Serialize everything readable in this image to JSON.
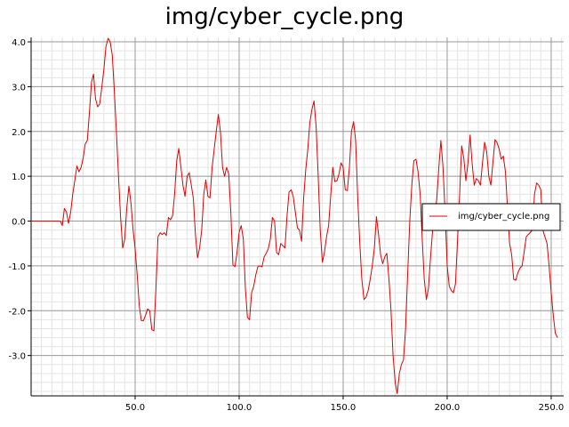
{
  "chart_data": {
    "type": "line",
    "title": "img/cyber_cycle.png",
    "xlabel": "",
    "ylabel": "",
    "xlim": [
      0,
      256
    ],
    "ylim": [
      -3.9,
      4.1
    ],
    "x_ticks": [
      50,
      100,
      150,
      200,
      250
    ],
    "x_tick_labels": [
      "50.0",
      "100.0",
      "150.0",
      "200.0",
      "250.0"
    ],
    "y_ticks": [
      -3,
      -2,
      -1,
      0,
      1,
      2,
      3,
      4
    ],
    "y_tick_labels": [
      "-3.0",
      "-2.0",
      "-1.0",
      "0.0",
      "1.0",
      "2.0",
      "3.0",
      "4.0"
    ],
    "grid": true,
    "legend_position": "right",
    "series": [
      {
        "name": "img/cyber_cycle.png",
        "color": "#e00000",
        "points": [
          [
            0,
            0
          ],
          [
            14,
            0
          ],
          [
            15,
            -0.1
          ],
          [
            16,
            0.28
          ],
          [
            17,
            0.2
          ],
          [
            18,
            -0.05
          ],
          [
            19,
            0.2
          ],
          [
            20,
            0.6
          ],
          [
            21,
            0.9
          ],
          [
            22,
            1.23
          ],
          [
            23,
            1.1
          ],
          [
            24,
            1.2
          ],
          [
            25,
            1.4
          ],
          [
            26,
            1.72
          ],
          [
            27,
            1.8
          ],
          [
            28,
            2.4
          ],
          [
            29,
            3.1
          ],
          [
            30,
            3.28
          ],
          [
            31,
            2.72
          ],
          [
            32,
            2.55
          ],
          [
            33,
            2.62
          ],
          [
            34,
            3.0
          ],
          [
            35,
            3.4
          ],
          [
            36,
            3.9
          ],
          [
            37,
            4.08
          ],
          [
            38,
            4.0
          ],
          [
            39,
            3.7
          ],
          [
            40,
            2.9
          ],
          [
            41,
            2.0
          ],
          [
            42,
            1.0
          ],
          [
            43,
            0.1
          ],
          [
            44,
            -0.6
          ],
          [
            45,
            -0.4
          ],
          [
            46,
            0.3
          ],
          [
            47,
            0.78
          ],
          [
            48,
            0.4
          ],
          [
            49,
            -0.2
          ],
          [
            50,
            -0.62
          ],
          [
            51,
            -1.2
          ],
          [
            52,
            -1.9
          ],
          [
            53,
            -2.22
          ],
          [
            54,
            -2.22
          ],
          [
            55,
            -2.1
          ],
          [
            56,
            -1.96
          ],
          [
            57,
            -2.0
          ],
          [
            58,
            -2.42
          ],
          [
            59,
            -2.45
          ],
          [
            60,
            -1.5
          ],
          [
            61,
            -0.35
          ],
          [
            62,
            -0.26
          ],
          [
            63,
            -0.3
          ],
          [
            64,
            -0.26
          ],
          [
            65,
            -0.32
          ],
          [
            66,
            0.08
          ],
          [
            67,
            0.03
          ],
          [
            68,
            0.12
          ],
          [
            69,
            0.6
          ],
          [
            70,
            1.35
          ],
          [
            71,
            1.62
          ],
          [
            72,
            1.2
          ],
          [
            73,
            0.8
          ],
          [
            74,
            0.55
          ],
          [
            75,
            1.0
          ],
          [
            76,
            1.08
          ],
          [
            77,
            0.8
          ],
          [
            78,
            0.5
          ],
          [
            79,
            -0.3
          ],
          [
            80,
            -0.82
          ],
          [
            81,
            -0.6
          ],
          [
            82,
            -0.2
          ],
          [
            83,
            0.6
          ],
          [
            84,
            0.92
          ],
          [
            85,
            0.55
          ],
          [
            86,
            0.52
          ],
          [
            87,
            1.2
          ],
          [
            88,
            1.6
          ],
          [
            89,
            2.0
          ],
          [
            90,
            2.38
          ],
          [
            91,
            2.0
          ],
          [
            92,
            1.2
          ],
          [
            93,
            1.0
          ],
          [
            94,
            1.2
          ],
          [
            95,
            1.05
          ],
          [
            96,
            0.2
          ],
          [
            97,
            -0.98
          ],
          [
            98,
            -1.02
          ],
          [
            99,
            -0.7
          ],
          [
            100,
            -0.25
          ],
          [
            101,
            -0.1
          ],
          [
            102,
            -0.4
          ],
          [
            103,
            -1.5
          ],
          [
            104,
            -2.15
          ],
          [
            105,
            -2.2
          ],
          [
            106,
            -1.6
          ],
          [
            107,
            -1.45
          ],
          [
            108,
            -1.2
          ],
          [
            109,
            -1.02
          ],
          [
            110,
            -1.0
          ],
          [
            111,
            -1.02
          ],
          [
            112,
            -0.8
          ],
          [
            113,
            -0.72
          ],
          [
            114,
            -0.62
          ],
          [
            115,
            -0.4
          ],
          [
            116,
            0.08
          ],
          [
            117,
            0.0
          ],
          [
            118,
            -0.7
          ],
          [
            119,
            -0.75
          ],
          [
            120,
            -0.5
          ],
          [
            121,
            -0.55
          ],
          [
            122,
            -0.6
          ],
          [
            123,
            0.1
          ],
          [
            124,
            0.65
          ],
          [
            125,
            0.7
          ],
          [
            126,
            0.55
          ],
          [
            127,
            0.2
          ],
          [
            128,
            -0.15
          ],
          [
            129,
            -0.2
          ],
          [
            130,
            -0.45
          ],
          [
            131,
            0.5
          ],
          [
            132,
            1.15
          ],
          [
            133,
            1.6
          ],
          [
            134,
            2.2
          ],
          [
            135,
            2.5
          ],
          [
            136,
            2.68
          ],
          [
            137,
            2.1
          ],
          [
            138,
            1.0
          ],
          [
            139,
            -0.2
          ],
          [
            140,
            -0.92
          ],
          [
            141,
            -0.7
          ],
          [
            142,
            -0.35
          ],
          [
            143,
            -0.1
          ],
          [
            144,
            0.55
          ],
          [
            145,
            1.2
          ],
          [
            146,
            0.88
          ],
          [
            147,
            0.9
          ],
          [
            148,
            1.05
          ],
          [
            149,
            1.3
          ],
          [
            150,
            1.2
          ],
          [
            151,
            0.7
          ],
          [
            152,
            0.68
          ],
          [
            153,
            1.2
          ],
          [
            154,
            2.0
          ],
          [
            155,
            2.22
          ],
          [
            156,
            1.8
          ],
          [
            157,
            0.5
          ],
          [
            158,
            -0.5
          ],
          [
            159,
            -1.3
          ],
          [
            160,
            -1.75
          ],
          [
            161,
            -1.7
          ],
          [
            162,
            -1.55
          ],
          [
            163,
            -1.3
          ],
          [
            164,
            -1.0
          ],
          [
            165,
            -0.6
          ],
          [
            166,
            0.1
          ],
          [
            167,
            -0.3
          ],
          [
            168,
            -0.75
          ],
          [
            169,
            -0.95
          ],
          [
            170,
            -0.8
          ],
          [
            171,
            -0.72
          ],
          [
            172,
            -1.3
          ],
          [
            173,
            -2.0
          ],
          [
            174,
            -3.0
          ],
          [
            175,
            -3.6
          ],
          [
            176,
            -3.85
          ],
          [
            177,
            -3.4
          ],
          [
            178,
            -3.2
          ],
          [
            179,
            -3.1
          ],
          [
            180,
            -2.4
          ],
          [
            181,
            -1.2
          ],
          [
            182,
            0.0
          ],
          [
            183,
            0.8
          ],
          [
            184,
            1.35
          ],
          [
            185,
            1.38
          ],
          [
            186,
            1.1
          ],
          [
            187,
            0.6
          ],
          [
            188,
            -0.4
          ],
          [
            189,
            -1.3
          ],
          [
            190,
            -1.75
          ],
          [
            191,
            -1.5
          ],
          [
            192,
            -0.8
          ],
          [
            193,
            -0.2
          ],
          [
            194,
            0.1
          ],
          [
            195,
            0.5
          ],
          [
            196,
            1.2
          ],
          [
            197,
            1.8
          ],
          [
            198,
            1.2
          ],
          [
            199,
            0.2
          ],
          [
            200,
            -1.0
          ],
          [
            201,
            -1.45
          ],
          [
            202,
            -1.55
          ],
          [
            203,
            -1.6
          ],
          [
            204,
            -1.4
          ],
          [
            205,
            -0.4
          ],
          [
            206,
            0.6
          ],
          [
            207,
            1.68
          ],
          [
            208,
            1.4
          ],
          [
            209,
            0.9
          ],
          [
            210,
            1.3
          ],
          [
            211,
            1.92
          ],
          [
            212,
            1.3
          ],
          [
            213,
            0.8
          ],
          [
            214,
            0.95
          ],
          [
            215,
            0.9
          ],
          [
            216,
            0.8
          ],
          [
            217,
            1.3
          ],
          [
            218,
            1.76
          ],
          [
            219,
            1.55
          ],
          [
            220,
            1.0
          ],
          [
            221,
            0.8
          ],
          [
            222,
            1.3
          ],
          [
            223,
            1.82
          ],
          [
            224,
            1.75
          ],
          [
            225,
            1.6
          ],
          [
            226,
            1.38
          ],
          [
            227,
            1.45
          ],
          [
            228,
            1.1
          ],
          [
            229,
            0.3
          ],
          [
            230,
            -0.5
          ],
          [
            231,
            -0.75
          ],
          [
            232,
            -1.3
          ],
          [
            233,
            -1.32
          ],
          [
            234,
            -1.15
          ],
          [
            235,
            -1.05
          ],
          [
            236,
            -1.0
          ],
          [
            237,
            -0.7
          ],
          [
            238,
            -0.35
          ],
          [
            239,
            -0.3
          ],
          [
            240,
            -0.25
          ],
          [
            241,
            -0.2
          ],
          [
            242,
            0.6
          ],
          [
            243,
            0.85
          ],
          [
            244,
            0.8
          ],
          [
            245,
            0.7
          ],
          [
            246,
            -0.2
          ],
          [
            247,
            -0.35
          ],
          [
            248,
            -0.5
          ],
          [
            249,
            -1.0
          ],
          [
            250,
            -1.6
          ],
          [
            251,
            -2.1
          ],
          [
            252,
            -2.5
          ],
          [
            253,
            -2.6
          ]
        ]
      }
    ]
  }
}
